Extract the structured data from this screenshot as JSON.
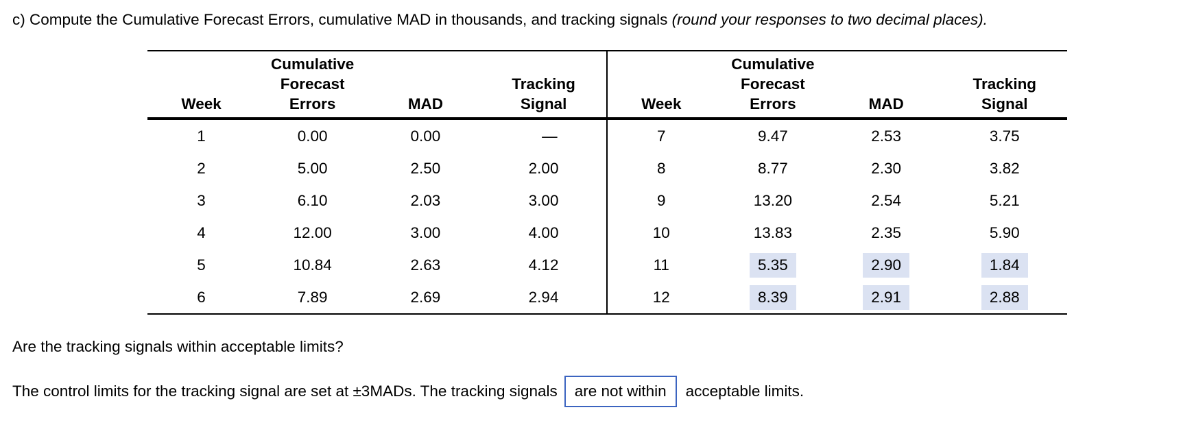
{
  "instruction": {
    "prefix": "c) Compute the Cumulative Forecast Errors, cumulative MAD in thousands, and tracking signals ",
    "italic": "(round your responses to two decimal places)."
  },
  "table": {
    "headers": {
      "week": "Week",
      "cfe_lines": [
        "Cumulative",
        "Forecast",
        "Errors"
      ],
      "mad": "MAD",
      "ts_lines": [
        "Tracking",
        "Signal"
      ]
    },
    "left_rows": [
      {
        "week": "1",
        "cfe": "0.00",
        "mad": "0.00",
        "ts": "—"
      },
      {
        "week": "2",
        "cfe": "5.00",
        "mad": "2.50",
        "ts": "2.00"
      },
      {
        "week": "3",
        "cfe": "6.10",
        "mad": "2.03",
        "ts": "3.00"
      },
      {
        "week": "4",
        "cfe": "12.00",
        "mad": "3.00",
        "ts": "4.00"
      },
      {
        "week": "5",
        "cfe": "10.84",
        "mad": "2.63",
        "ts": "4.12"
      },
      {
        "week": "6",
        "cfe": "7.89",
        "mad": "2.69",
        "ts": "2.94"
      }
    ],
    "right_rows": [
      {
        "week": "7",
        "cfe": "9.47",
        "mad": "2.53",
        "ts": "3.75"
      },
      {
        "week": "8",
        "cfe": "8.77",
        "mad": "2.30",
        "ts": "3.82"
      },
      {
        "week": "9",
        "cfe": "13.20",
        "mad": "2.54",
        "ts": "5.21"
      },
      {
        "week": "10",
        "cfe": "13.83",
        "mad": "2.35",
        "ts": "5.90"
      },
      {
        "week": "11",
        "cfe": "5.35",
        "mad": "2.90",
        "ts": "1.84"
      },
      {
        "week": "12",
        "cfe": "8.39",
        "mad": "2.91",
        "ts": "2.88"
      }
    ]
  },
  "question": "Are the tracking signals within acceptable limits?",
  "answer": {
    "before": "The control limits for the tracking signal are set at ±3MADs. The tracking signals",
    "box_value": "are not within",
    "after": "acceptable limits."
  },
  "colors": {
    "highlight": "#dbe2f2",
    "box_border": "#3c64c0"
  }
}
